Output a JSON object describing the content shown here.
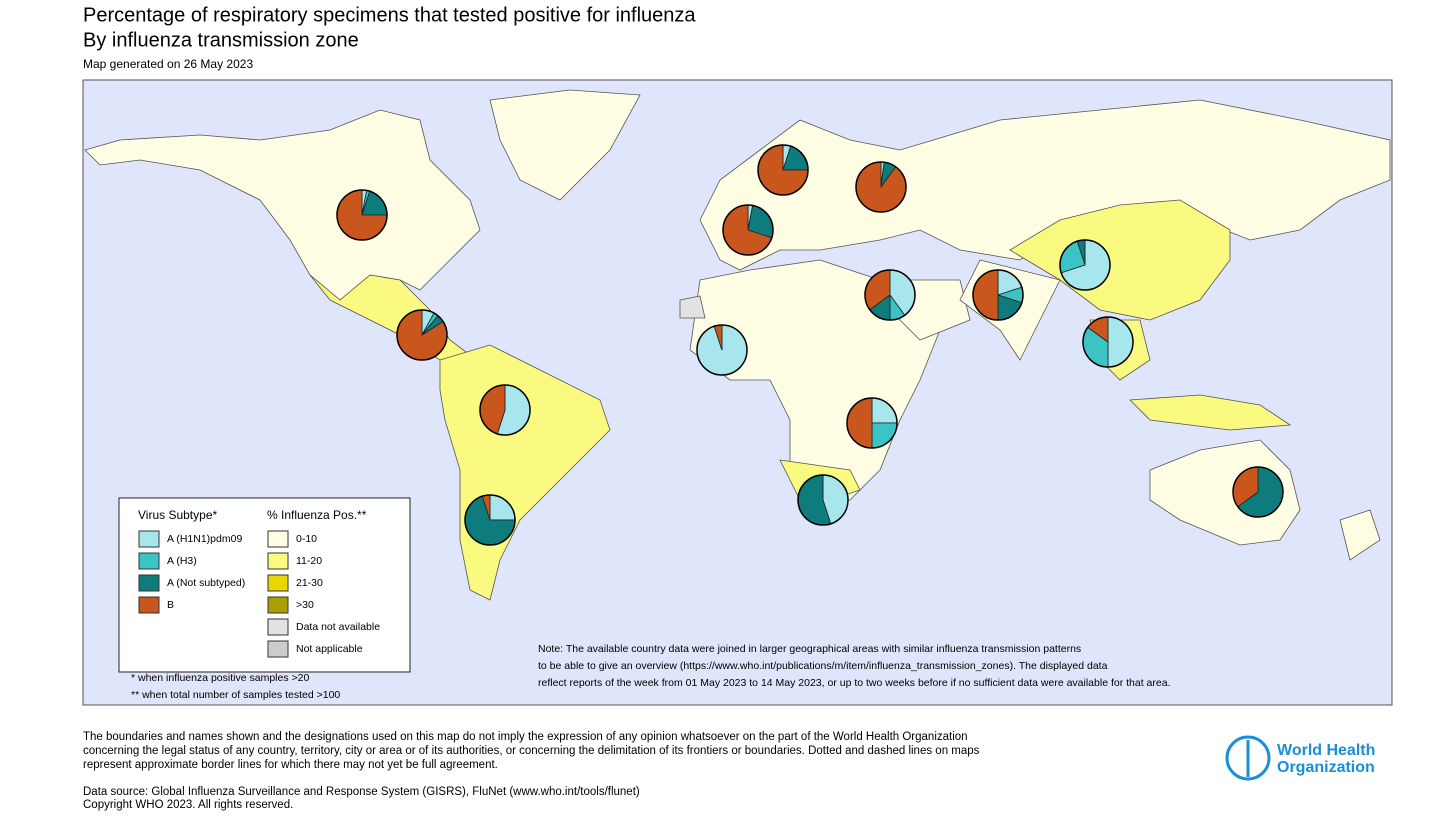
{
  "header": {
    "title": "Percentage of respiratory specimens that tested positive for influenza",
    "subtitle": "By influenza transmission zone",
    "date": "Map generated on 26 May 2023"
  },
  "subtypes": [
    {
      "name": "A (H1N1)pdm09",
      "color": "#a6e6ec"
    },
    {
      "name": "A (H3)",
      "color": "#3cc4c4"
    },
    {
      "name": "A (Not subtyped)",
      "color": "#0e7c7c"
    },
    {
      "name": "B",
      "color": "#c8561d"
    }
  ],
  "legend": {
    "subtype_title": "Virus Subtype*",
    "positivity_title": "% Influenza Pos.**",
    "positivity": [
      {
        "label": "0-10",
        "color": "#fffde4"
      },
      {
        "label": "11-20",
        "color": "#fbfa80"
      },
      {
        "label": "21-30",
        "color": "#e8d800"
      },
      {
        "label": ">30",
        "color": "#a8a000"
      },
      {
        "label": "Data not available",
        "color": "#e2e2e2"
      },
      {
        "label": "Not applicable",
        "color": "#cccccc"
      }
    ],
    "footnotes": [
      "* when influenza positive samples >20",
      "** when total number of samples tested >100"
    ]
  },
  "pies": [
    {
      "values": [
        3,
        2,
        20,
        75
      ]
    },
    {
      "values": [
        8,
        3,
        5,
        84
      ]
    },
    {
      "values": [
        55,
        0,
        0,
        45
      ]
    },
    {
      "values": [
        25,
        0,
        70,
        5
      ]
    },
    {
      "values": [
        95,
        0,
        0,
        5
      ]
    },
    {
      "values": [
        25,
        25,
        0,
        50
      ]
    },
    {
      "values": [
        45,
        0,
        55,
        0
      ]
    },
    {
      "values": [
        5,
        0,
        20,
        75
      ]
    },
    {
      "values": [
        2,
        0,
        8,
        90
      ]
    },
    {
      "values": [
        3,
        0,
        27,
        70
      ]
    },
    {
      "values": [
        40,
        10,
        15,
        35
      ]
    },
    {
      "values": [
        20,
        10,
        20,
        50
      ]
    },
    {
      "values": [
        70,
        25,
        5,
        0
      ]
    },
    {
      "values": [
        50,
        35,
        0,
        15
      ]
    },
    {
      "values": [
        0,
        0,
        65,
        35
      ]
    }
  ],
  "note": [
    "Note: The available country data were joined in larger geographical areas with similar influenza transmission patterns",
    "to be able to give an overview (https://www.who.int/publications/m/item/influenza_transmission_zones). The displayed data",
    "reflect reports of the week from 01 May 2023 to 14 May 2023, or up to two weeks before if no sufficient data were available for that area."
  ],
  "disclaimer": [
    "The boundaries and names shown and the designations used on this map do not imply the expression of any opinion whatsoever on the part of the World Health Organization",
    "concerning the legal status of any country, territory, city or area or of its authorities, or concerning the delimitation of its frontiers or boundaries. Dotted and dashed lines on maps",
    "represent approximate border lines for which there may not yet be full agreement."
  ],
  "source": [
    "Data source: Global Influenza Surveillance and Response System (GISRS), FluNet (www.who.int/tools/flunet)",
    "Copyright WHO 2023. All rights reserved."
  ],
  "logo": [
    "World Health",
    "Organization"
  ]
}
